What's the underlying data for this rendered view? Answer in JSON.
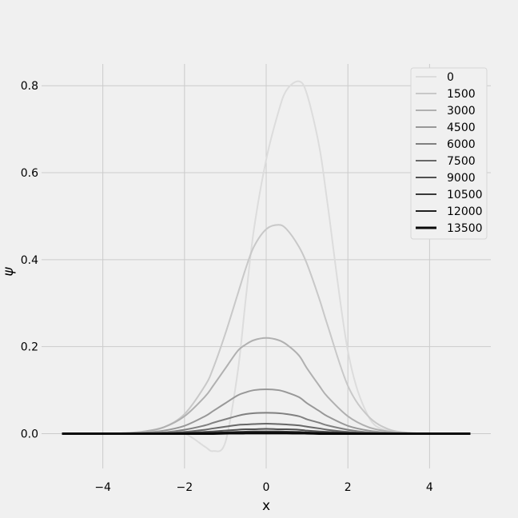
{
  "chart_data": {
    "type": "line",
    "title": "",
    "xlabel": "x",
    "ylabel": "ψ",
    "xlim": [
      -5.5,
      5.5
    ],
    "ylim": [
      -0.08,
      0.85
    ],
    "xticks": [
      -4,
      -2,
      0,
      2,
      4
    ],
    "xtick_labels": [
      "−4",
      "−2",
      "0",
      "2",
      "4"
    ],
    "yticks": [
      0.0,
      0.2,
      0.4,
      0.6,
      0.8
    ],
    "ytick_labels": [
      "0.0",
      "0.2",
      "0.4",
      "0.6",
      "0.8"
    ],
    "grid": true,
    "legend_position": "top-right",
    "x": [
      -5.0,
      -4.0,
      -3.5,
      -3.0,
      -2.5,
      -2.0,
      -1.5,
      -1.3,
      -1.0,
      -0.7,
      -0.5,
      -0.3,
      0.0,
      0.3,
      0.5,
      0.8,
      1.0,
      1.3,
      1.5,
      2.0,
      2.5,
      3.0,
      3.5,
      4.0,
      5.0
    ],
    "series": [
      {
        "name": "0",
        "color": "#dcdcdc",
        "values": [
          0.0,
          0.0,
          0.0,
          0.0,
          0.0,
          0.0,
          -0.03,
          -0.04,
          -0.02,
          0.14,
          0.31,
          0.47,
          0.63,
          0.74,
          0.79,
          0.81,
          0.78,
          0.66,
          0.53,
          0.19,
          0.04,
          0.006,
          0.0,
          0.0,
          0.0
        ]
      },
      {
        "name": "1500",
        "color": "#c8c8c8",
        "values": [
          0.0,
          0.0,
          0.001,
          0.004,
          0.015,
          0.045,
          0.11,
          0.15,
          0.23,
          0.32,
          0.38,
          0.43,
          0.47,
          0.48,
          0.47,
          0.43,
          0.39,
          0.31,
          0.25,
          0.11,
          0.04,
          0.01,
          0.002,
          0.0,
          0.0
        ]
      },
      {
        "name": "3000",
        "color": "#b0b0b0",
        "values": [
          0.0,
          0.0,
          0.001,
          0.005,
          0.015,
          0.04,
          0.085,
          0.11,
          0.15,
          0.19,
          0.205,
          0.215,
          0.22,
          0.215,
          0.205,
          0.18,
          0.15,
          0.11,
          0.085,
          0.04,
          0.015,
          0.005,
          0.001,
          0.0,
          0.0
        ]
      },
      {
        "name": "4500",
        "color": "#989898",
        "values": [
          0.0,
          0.0,
          0.0,
          0.002,
          0.007,
          0.018,
          0.04,
          0.052,
          0.07,
          0.088,
          0.095,
          0.1,
          0.102,
          0.1,
          0.095,
          0.084,
          0.07,
          0.052,
          0.04,
          0.018,
          0.007,
          0.002,
          0.0,
          0.0,
          0.0
        ]
      },
      {
        "name": "6000",
        "color": "#808080",
        "values": [
          0.0,
          0.0,
          0.0,
          0.001,
          0.003,
          0.009,
          0.019,
          0.025,
          0.033,
          0.041,
          0.045,
          0.047,
          0.048,
          0.047,
          0.045,
          0.04,
          0.033,
          0.025,
          0.019,
          0.009,
          0.003,
          0.001,
          0.0,
          0.0,
          0.0
        ]
      },
      {
        "name": "7500",
        "color": "#686868",
        "values": [
          0.0,
          0.0,
          0.0,
          0.0,
          0.001,
          0.004,
          0.009,
          0.012,
          0.016,
          0.02,
          0.021,
          0.022,
          0.023,
          0.022,
          0.021,
          0.019,
          0.016,
          0.012,
          0.009,
          0.004,
          0.001,
          0.0,
          0.0,
          0.0,
          0.0
        ]
      },
      {
        "name": "9000",
        "color": "#505050",
        "values": [
          0.0,
          0.0,
          0.0,
          0.0,
          0.0,
          0.002,
          0.004,
          0.005,
          0.007,
          0.009,
          0.01,
          0.01,
          0.011,
          0.01,
          0.01,
          0.009,
          0.007,
          0.005,
          0.004,
          0.002,
          0.0,
          0.0,
          0.0,
          0.0,
          0.0
        ]
      },
      {
        "name": "10500",
        "color": "#383838",
        "values": [
          0.0,
          0.0,
          0.0,
          0.0,
          0.0,
          0.001,
          0.002,
          0.002,
          0.003,
          0.004,
          0.0045,
          0.005,
          0.005,
          0.005,
          0.0045,
          0.004,
          0.003,
          0.002,
          0.002,
          0.001,
          0.0,
          0.0,
          0.0,
          0.0,
          0.0
        ]
      },
      {
        "name": "12000",
        "color": "#202020",
        "values": [
          0.0,
          0.0,
          0.0,
          0.0,
          0.0,
          0.0,
          0.001,
          0.001,
          0.0015,
          0.002,
          0.002,
          0.002,
          0.0022,
          0.002,
          0.002,
          0.002,
          0.0015,
          0.001,
          0.001,
          0.0,
          0.0,
          0.0,
          0.0,
          0.0,
          0.0
        ]
      },
      {
        "name": "13500",
        "color": "#080808",
        "values": [
          0.0,
          0.0,
          0.0,
          0.0,
          0.0,
          0.0,
          0.0,
          0.0,
          0.0007,
          0.0009,
          0.001,
          0.001,
          0.001,
          0.001,
          0.001,
          0.0009,
          0.0007,
          0.0,
          0.0,
          0.0,
          0.0,
          0.0,
          0.0,
          0.0,
          0.0
        ]
      }
    ]
  }
}
